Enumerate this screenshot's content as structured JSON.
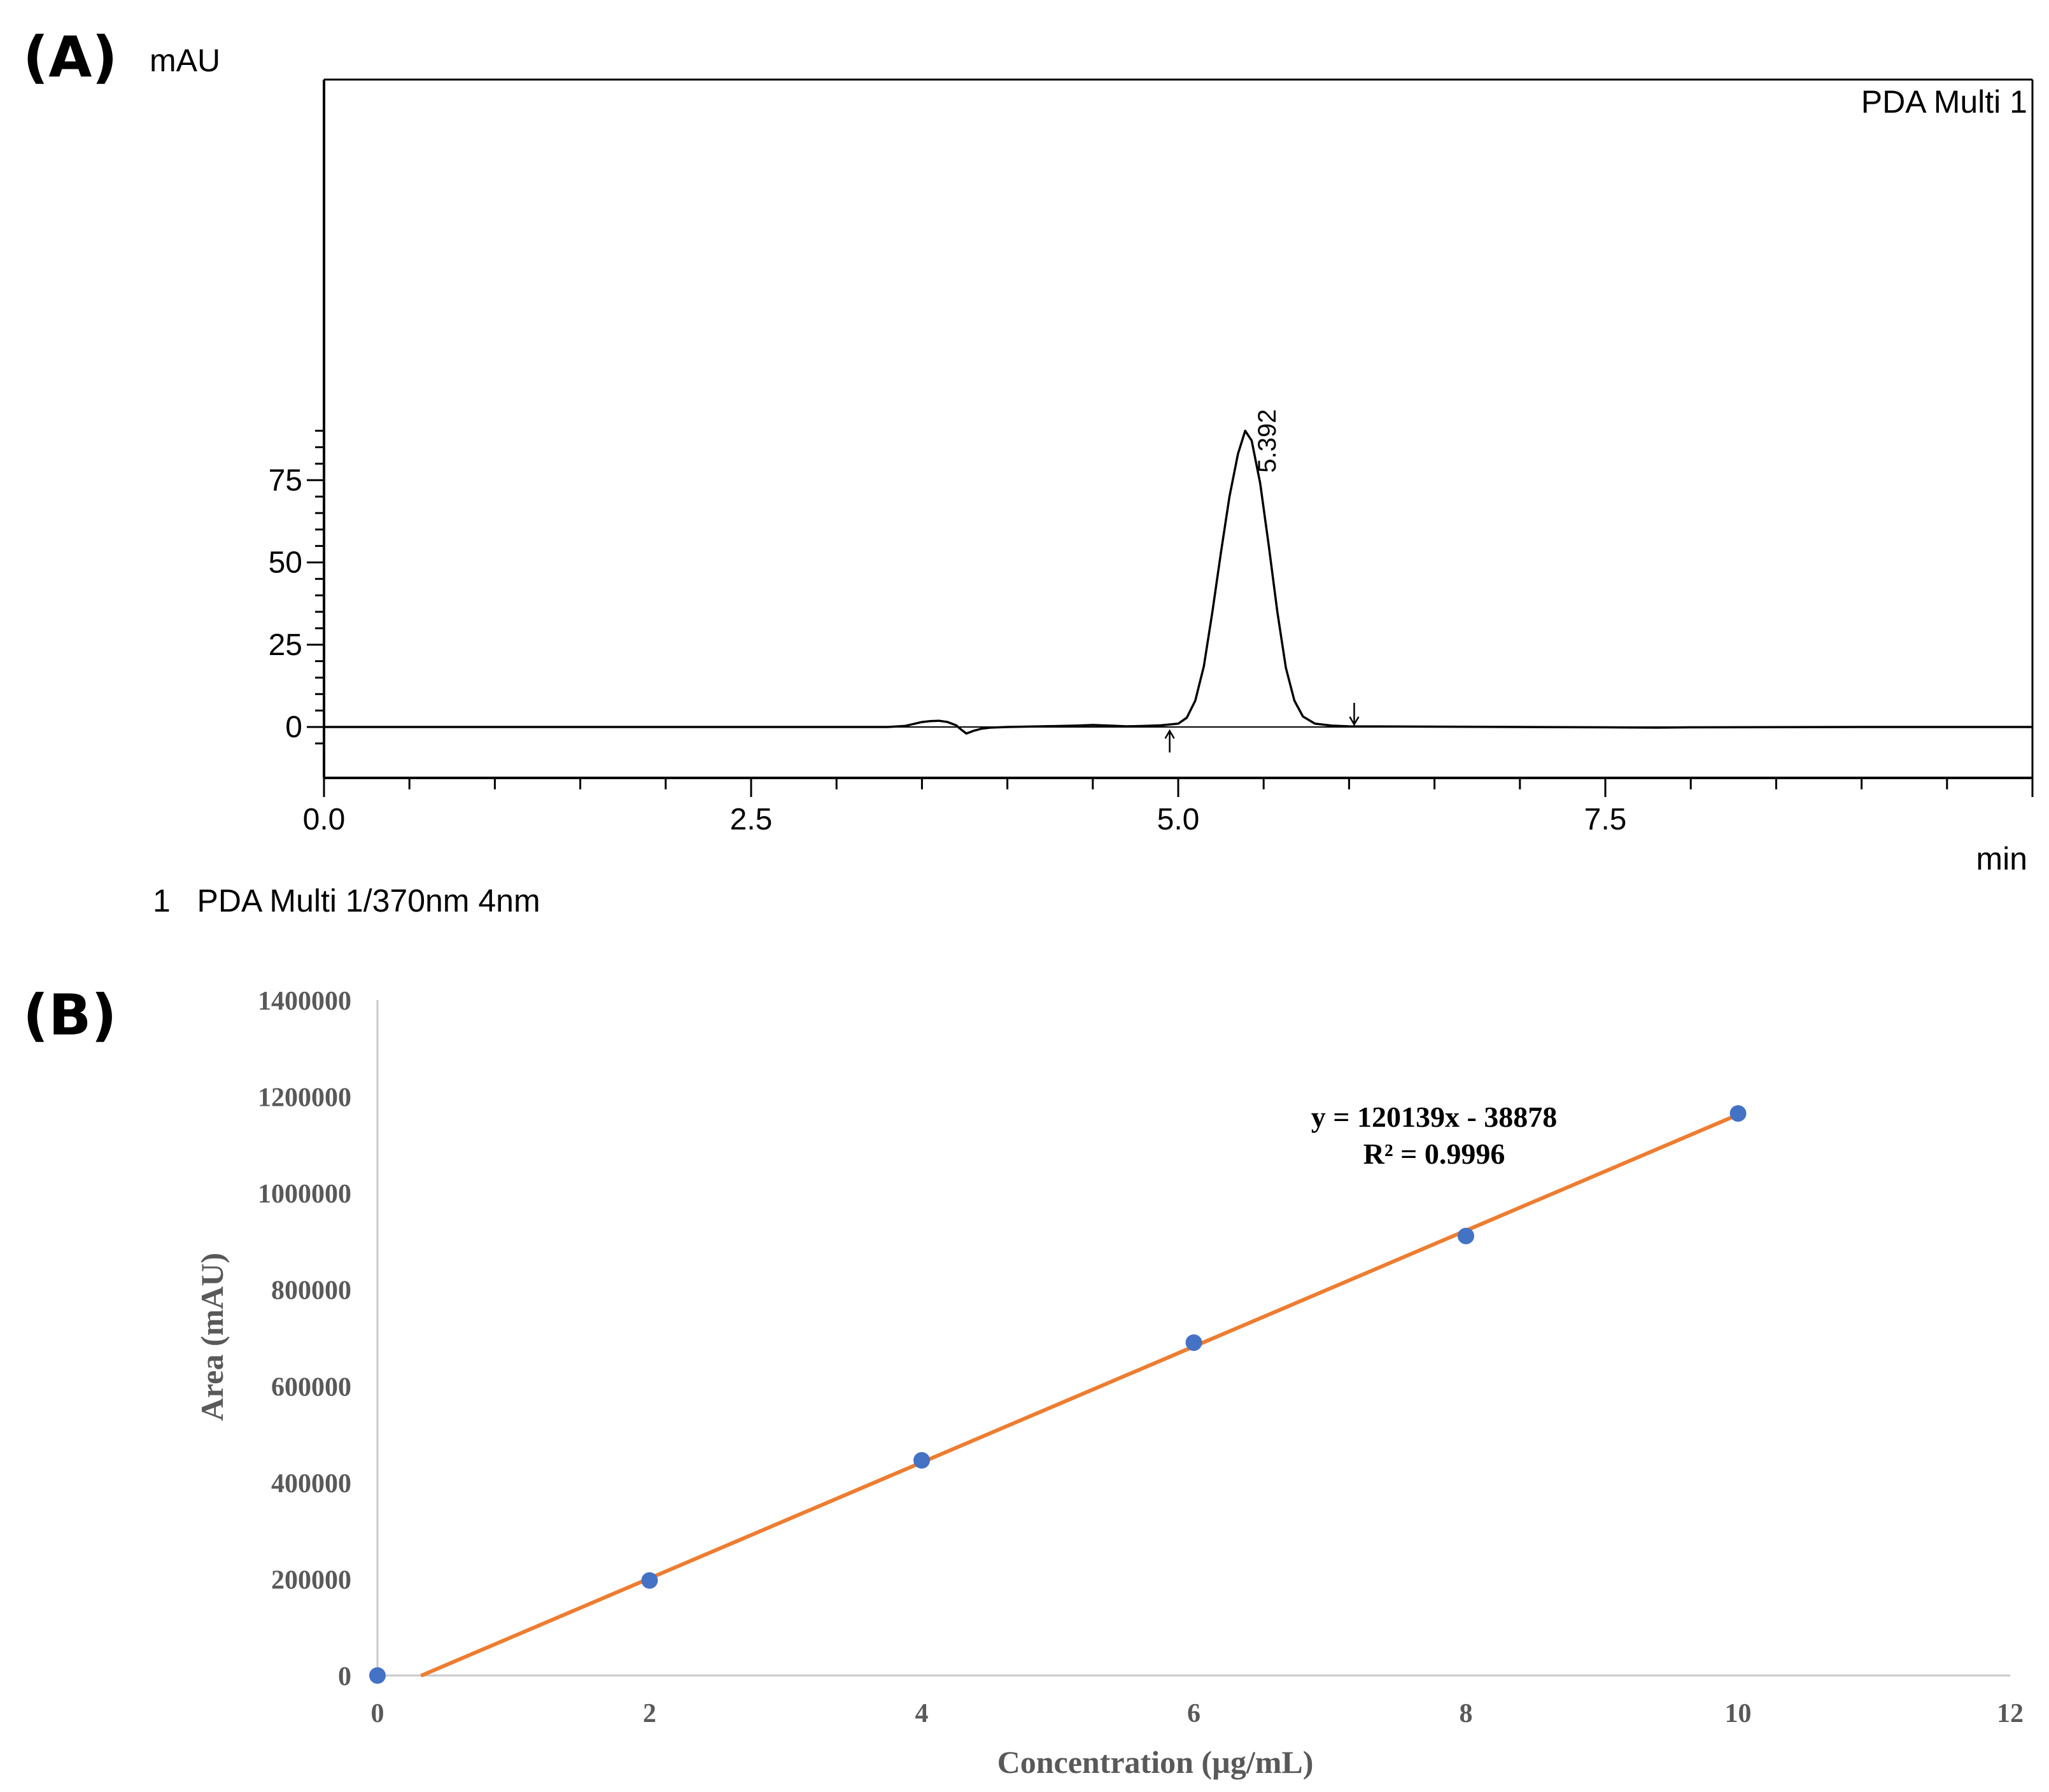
{
  "chart_data": [
    {
      "type": "line",
      "panel_label": "(A)",
      "xlabel": "min",
      "ylabel": "mAU",
      "xlim": [
        0.0,
        10.0
      ],
      "ylim": [
        -7,
        95
      ],
      "x_ticks": [
        "0.0",
        "2.5",
        "5.0",
        "7.5"
      ],
      "y_ticks": [
        "0",
        "25",
        "50",
        "75"
      ],
      "channel_label": "PDA Multi 1",
      "footer_legend": "1   PDA Multi 1/370nm 4nm",
      "peaks": [
        {
          "retention_time": 5.392,
          "label": "5.392",
          "height": 90
        }
      ],
      "integration_markers": [
        {
          "x": 4.95,
          "direction": "up"
        },
        {
          "x": 6.03,
          "direction": "down"
        }
      ],
      "series": [
        {
          "x": [
            0.0,
            1.0,
            2.0,
            3.0,
            3.3,
            3.4,
            3.45,
            3.5,
            3.55,
            3.6,
            3.65,
            3.7,
            3.73,
            3.76,
            3.8,
            3.85,
            3.9,
            4.0,
            4.2,
            4.4,
            4.5,
            4.6,
            4.7,
            4.8,
            4.9,
            5.0,
            5.05,
            5.1,
            5.15,
            5.2,
            5.25,
            5.3,
            5.35,
            5.392,
            5.43,
            5.48,
            5.53,
            5.58,
            5.63,
            5.68,
            5.73,
            5.8,
            5.9,
            6.0,
            6.5,
            7.0,
            7.5,
            7.8,
            8.0,
            9.0,
            10.0
          ],
          "y": [
            0,
            0,
            0,
            0,
            0,
            0.3,
            0.9,
            1.5,
            1.8,
            1.9,
            1.5,
            0.5,
            -0.8,
            -2.0,
            -1.2,
            -0.5,
            -0.2,
            0,
            0.2,
            0.4,
            0.6,
            0.4,
            0.2,
            0.3,
            0.5,
            1.0,
            2.8,
            8.0,
            18.5,
            35.0,
            53.0,
            70.0,
            83.0,
            90.0,
            87.0,
            74.0,
            55.0,
            35.0,
            18.0,
            8.0,
            3.2,
            1.0,
            0.4,
            0.2,
            0.1,
            0,
            -0.1,
            -0.2,
            -0.1,
            0,
            0
          ]
        }
      ]
    },
    {
      "type": "scatter",
      "panel_label": "(B)",
      "xlabel": "Concentration (µg/mL)",
      "ylabel": "Area (mAU)",
      "xlim": [
        0,
        12
      ],
      "ylim": [
        0,
        1400000
      ],
      "x_ticks": [
        "0",
        "2",
        "4",
        "6",
        "8",
        "10",
        "12"
      ],
      "y_ticks": [
        "0",
        "200000",
        "400000",
        "600000",
        "800000",
        "1000000",
        "1200000",
        "1400000"
      ],
      "series": [
        {
          "x": [
            0,
            2,
            4,
            6,
            8,
            10
          ],
          "y": [
            0,
            197000,
            446000,
            690000,
            911000,
            1165000
          ],
          "color": "#4472C4"
        }
      ],
      "trendline": {
        "slope": 120139,
        "intercept": -38878,
        "x_range": [
          0.32,
          10
        ],
        "color": "#ED7D31",
        "equation": "y = 120139x - 38878",
        "r_squared": "R² = 0.9996"
      }
    }
  ]
}
